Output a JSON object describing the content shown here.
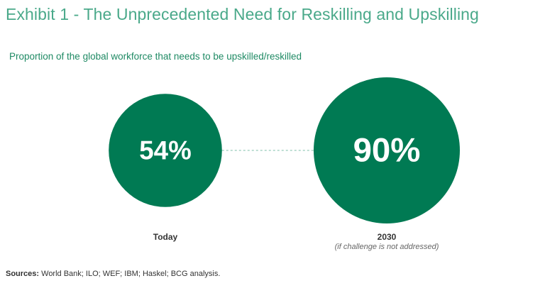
{
  "title": "Exhibit 1 - The Unprecedented Need for Reskilling and Upskilling",
  "subtitle": "Proportion of the global workforce that needs to be upskilled/reskilled",
  "chart_data": {
    "type": "bubble",
    "categories": [
      "Today",
      "2030"
    ],
    "values": [
      54,
      90
    ],
    "unit": "%",
    "value_labels": [
      "54%",
      "90%"
    ],
    "category_notes": [
      "",
      "(if challenge is not addressed)"
    ],
    "connector": "dashed",
    "color": "#007a53"
  },
  "source": {
    "label": "Sources:",
    "text": " World Bank; ILO; WEF; IBM; Haskel; BCG analysis."
  }
}
